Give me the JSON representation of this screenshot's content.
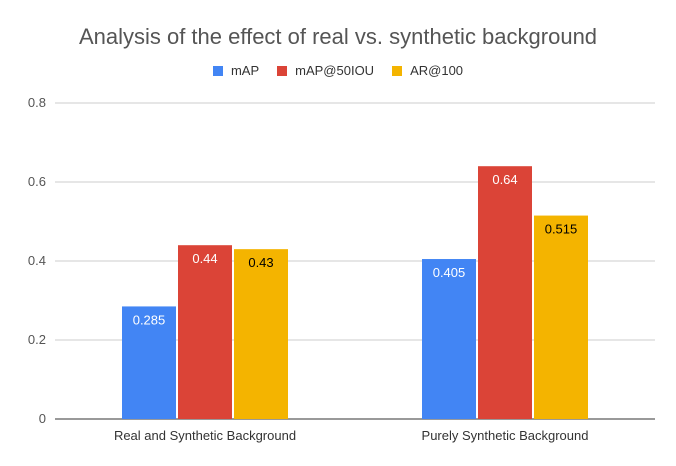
{
  "chart_data": {
    "type": "bar",
    "title": "Analysis of the effect of real vs. synthetic background",
    "categories": [
      "Real and Synthetic Background",
      "Purely Synthetic Background"
    ],
    "series": [
      {
        "name": "mAP",
        "values": [
          0.285,
          0.405
        ],
        "labels": [
          "0.285",
          "0.405"
        ],
        "color": "#4285F4",
        "label_color": "#ffffff"
      },
      {
        "name": "mAP@50IOU",
        "values": [
          0.44,
          0.64
        ],
        "labels": [
          "0.44",
          "0.64"
        ],
        "color": "#DB4437",
        "label_color": "#ffffff"
      },
      {
        "name": "AR@100",
        "values": [
          0.43,
          0.515
        ],
        "labels": [
          "0.43",
          "0.515"
        ],
        "color": "#F4B400",
        "label_color": "#000000"
      }
    ],
    "yticks": [
      "0",
      "0.2",
      "0.4",
      "0.6",
      "0.8"
    ],
    "ytick_values": [
      0,
      0.2,
      0.4,
      0.6,
      0.8
    ],
    "ylim": [
      0,
      0.8
    ],
    "grid": true,
    "legend_position": "top"
  }
}
